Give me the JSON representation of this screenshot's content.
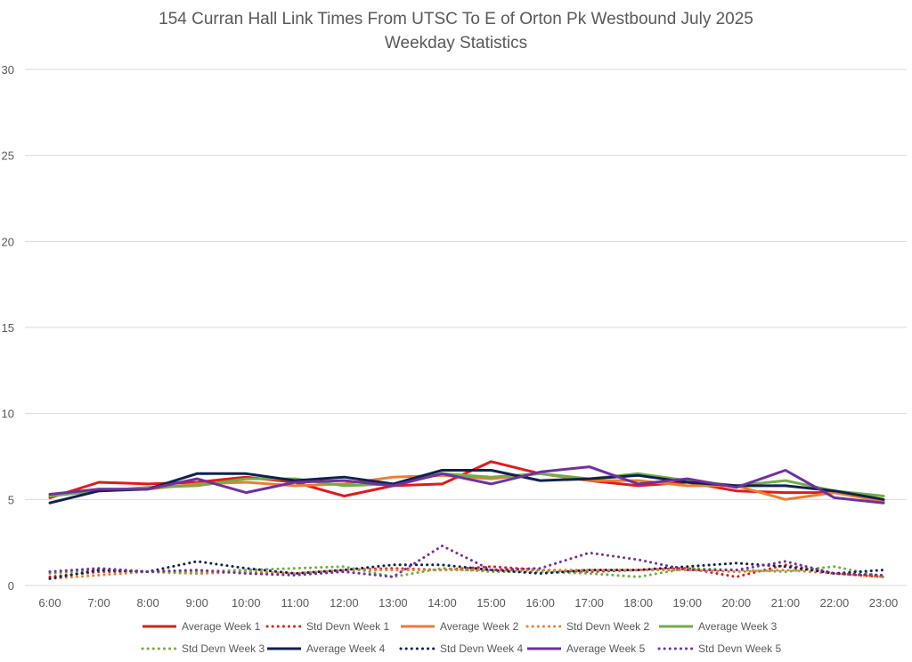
{
  "chart_data": {
    "type": "line",
    "title": "154 Curran Hall Link Times From UTSC To E of Orton Pk Westbound July 2025",
    "subtitle": "Weekday Statistics",
    "xlabel": "",
    "ylabel": "",
    "categories": [
      "6:00",
      "7:00",
      "8:00",
      "9:00",
      "10:00",
      "11:00",
      "12:00",
      "13:00",
      "14:00",
      "15:00",
      "16:00",
      "17:00",
      "18:00",
      "19:00",
      "20:00",
      "21:00",
      "22:00",
      "23:00"
    ],
    "ylim": [
      0,
      30
    ],
    "yticks": [
      0,
      5,
      10,
      15,
      20,
      25,
      30
    ],
    "grid": true,
    "legend_position": "bottom",
    "series": [
      {
        "name": "Average Week 1",
        "color": "#e31a1c",
        "style": "solid",
        "values": [
          5.1,
          6.0,
          5.9,
          6.0,
          6.3,
          6.0,
          5.2,
          5.8,
          5.9,
          7.2,
          6.5,
          6.1,
          5.8,
          6.0,
          5.5,
          5.4,
          5.4,
          4.9
        ]
      },
      {
        "name": "Std Devn Week 1",
        "color": "#e31a1c",
        "style": "dotted",
        "values": [
          0.5,
          0.8,
          0.8,
          0.7,
          0.8,
          0.7,
          0.9,
          1.0,
          0.9,
          1.1,
          0.9,
          0.8,
          0.9,
          1.0,
          0.5,
          1.2,
          0.7,
          0.5
        ]
      },
      {
        "name": "Average Week 2",
        "color": "#ed7d31",
        "style": "solid",
        "values": [
          5.2,
          5.6,
          5.6,
          5.9,
          6.0,
          5.8,
          5.9,
          6.3,
          6.4,
          6.2,
          6.5,
          6.1,
          6.1,
          5.8,
          5.8,
          5.0,
          5.4,
          4.9
        ]
      },
      {
        "name": "Std Devn Week 2",
        "color": "#ed7d31",
        "style": "dotted",
        "values": [
          0.4,
          0.6,
          0.8,
          0.7,
          0.8,
          0.7,
          0.9,
          0.9,
          0.9,
          0.9,
          0.9,
          0.9,
          0.9,
          0.9,
          0.8,
          0.9,
          0.7,
          0.5
        ]
      },
      {
        "name": "Average Week 3",
        "color": "#70ad47",
        "style": "solid",
        "values": [
          5.2,
          5.5,
          5.7,
          5.8,
          6.2,
          6.2,
          5.8,
          5.9,
          6.5,
          6.3,
          6.5,
          6.2,
          6.5,
          6.1,
          5.8,
          6.1,
          5.5,
          5.2
        ]
      },
      {
        "name": "Std Devn Week 3",
        "color": "#70ad47",
        "style": "dotted",
        "values": [
          0.7,
          0.9,
          0.8,
          0.8,
          0.9,
          1.0,
          1.1,
          0.5,
          1.0,
          0.8,
          0.8,
          0.7,
          0.5,
          1.0,
          0.9,
          0.8,
          1.1,
          0.5
        ]
      },
      {
        "name": "Average Week 4",
        "color": "#0f2150",
        "style": "solid",
        "values": [
          4.8,
          5.5,
          5.6,
          6.5,
          6.5,
          6.1,
          6.3,
          5.9,
          6.7,
          6.7,
          6.1,
          6.2,
          6.4,
          6.0,
          5.8,
          5.8,
          5.5,
          5.0
        ]
      },
      {
        "name": "Std Devn Week 4",
        "color": "#0f2150",
        "style": "dotted",
        "values": [
          0.4,
          0.9,
          0.8,
          1.4,
          1.0,
          0.7,
          0.9,
          1.2,
          1.2,
          0.9,
          0.7,
          0.9,
          0.9,
          1.1,
          1.3,
          1.1,
          0.7,
          0.9
        ]
      },
      {
        "name": "Average Week 5",
        "color": "#7030a0",
        "style": "solid",
        "values": [
          5.3,
          5.6,
          5.6,
          6.2,
          5.4,
          6.0,
          6.1,
          5.8,
          6.5,
          5.9,
          6.6,
          6.9,
          5.9,
          6.2,
          5.7,
          6.7,
          5.1,
          4.8
        ]
      },
      {
        "name": "Std Devn Week 5",
        "color": "#7030a0",
        "style": "dotted",
        "values": [
          0.8,
          1.0,
          0.8,
          0.9,
          0.7,
          0.6,
          0.8,
          0.5,
          2.3,
          0.9,
          1.0,
          1.9,
          1.5,
          0.9,
          0.9,
          1.4,
          0.7,
          0.6
        ]
      }
    ]
  }
}
